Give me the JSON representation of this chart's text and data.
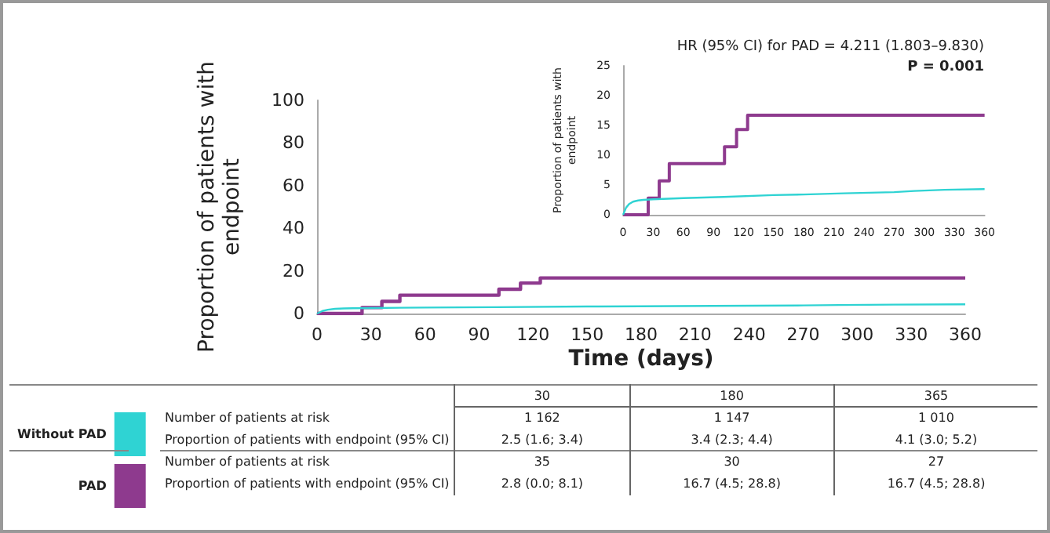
{
  "chart_data": [
    {
      "type": "line",
      "xlabel": "Time (days)",
      "ylabel": "Proportion of patients with endpoint",
      "xlim": [
        0,
        360
      ],
      "xticks": [
        0,
        30,
        60,
        90,
        120,
        150,
        180,
        210,
        240,
        270,
        300,
        330,
        360
      ],
      "ylim": [
        0,
        100
      ],
      "yticks": [
        0,
        20,
        40,
        60,
        80,
        100
      ],
      "grid": false,
      "legend": "bottom",
      "series": [
        {
          "name": "Without PAD",
          "color": "#2fd3d3",
          "x": [
            0,
            3,
            6,
            10,
            15,
            20,
            30,
            60,
            100,
            150,
            180,
            220,
            270,
            290,
            320,
            360
          ],
          "values": [
            0,
            1.2,
            1.8,
            2.2,
            2.4,
            2.5,
            2.6,
            2.8,
            3.0,
            3.3,
            3.4,
            3.6,
            3.8,
            4.0,
            4.2,
            4.3
          ]
        },
        {
          "name": "PAD",
          "type": "step",
          "color": "#8e3a8e",
          "x": [
            0,
            25,
            36,
            46,
            101,
            113,
            124,
            360
          ],
          "values": [
            0,
            2.8,
            5.7,
            8.6,
            11.4,
            14.3,
            16.7,
            16.7
          ]
        }
      ],
      "annotations": [
        "30",
        "180",
        "365",
        "Number of patients at risk",
        "1 162",
        "1 147",
        "1 010",
        "Proportion of patients with endpoint (95% CI)",
        "2.5 (1.6; 3.4)",
        "3.4 (2.3; 4.4)",
        "4.1 (3.0; 5.2)",
        "Number of patients at risk",
        "35",
        "30",
        "27",
        "Proportion of patients with endpoint (95% CI)",
        "2.8 (0.0; 8.1)",
        "16.7 (4.5; 28.8)",
        "16.7 (4.5; 28.8)"
      ]
    },
    {
      "type": "line",
      "ylabel": "Proportion of patients with endpoint",
      "xlim": [
        0,
        360
      ],
      "xticks": [
        0,
        30,
        60,
        90,
        120,
        150,
        180,
        210,
        240,
        270,
        300,
        330,
        360
      ],
      "ylim": [
        0,
        25
      ],
      "yticks": [
        0,
        5,
        10,
        15,
        20,
        25
      ],
      "grid": false,
      "series": [
        {
          "color": "#2fd3d3",
          "x": [
            0,
            3,
            6,
            10,
            15,
            20,
            30,
            60,
            100,
            150,
            180,
            220,
            270,
            290,
            320,
            360
          ],
          "values": [
            0,
            1.2,
            1.8,
            2.2,
            2.4,
            2.5,
            2.6,
            2.8,
            3.0,
            3.3,
            3.4,
            3.6,
            3.8,
            4.0,
            4.2,
            4.3
          ]
        },
        {
          "type": "step",
          "color": "#8e3a8e",
          "x": [
            0,
            25,
            36,
            46,
            101,
            113,
            124,
            360
          ],
          "values": [
            0,
            2.8,
            5.7,
            8.6,
            11.4,
            14.3,
            16.7,
            16.7
          ]
        }
      ],
      "annotations": [
        "HR (95% CI) for PAD = 4.211 (1.803–9.830)",
        "P = 0.001"
      ]
    }
  ]
}
